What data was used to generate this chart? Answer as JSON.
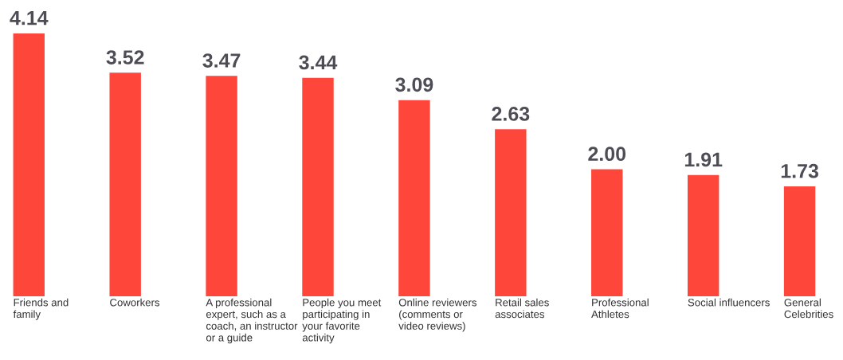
{
  "chart_data": {
    "type": "bar",
    "categories": [
      "Friends and\nfamily",
      "Coworkers",
      "A professional\nexpert, such as a\ncoach, an instructor\nor a guide",
      "People you meet\nparticipating in\nyour favorite\nactivity",
      "Online reviewers\n(comments or\nvideo reviews)",
      "Retail sales\nassociates",
      "Professional\nAthletes",
      "Social influencers",
      "General\nCelebrities"
    ],
    "values": [
      4.14,
      3.52,
      3.47,
      3.44,
      3.09,
      2.63,
      2.0,
      1.91,
      1.73
    ],
    "value_labels": [
      "4.14",
      "3.52",
      "3.47",
      "3.44",
      "3.09",
      "2.63",
      "2.00",
      "1.91",
      "1.73"
    ],
    "color": "#ff463b"
  }
}
